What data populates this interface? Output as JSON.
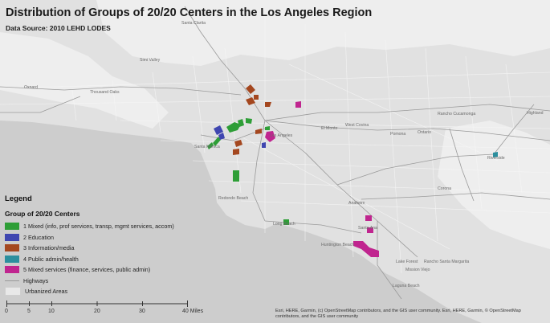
{
  "title": "Distribution of Groups of 20/20 Centers in the Los Angeles Region",
  "data_source": "Data Source: 2010 LEHD LODES",
  "legend": {
    "title": "Legend",
    "subtitle": "Group of 20/20 Centers",
    "items": [
      {
        "label": "1 Mixed (info, prof services, transp, mgmt services, accom)",
        "color": "#2e9e37"
      },
      {
        "label": "2 Education",
        "color": "#3f46b0"
      },
      {
        "label": "3 Information/media",
        "color": "#a4471f"
      },
      {
        "label": "4 Public admin/health",
        "color": "#2c8f9e"
      },
      {
        "label": "5 Mixed services (finance, services, public admin)",
        "color": "#c0258f"
      }
    ],
    "highways_label": "Highways",
    "urbanized_label": "Urbanized Areas"
  },
  "scale": {
    "labels": [
      "0",
      "5",
      "10",
      "20",
      "30",
      "40 Miles"
    ]
  },
  "attribution": "Esri, HERE, Garmin, (c) OpenStreetMap contributors, and the GIS user community. Esri, HERE, Garmin, © OpenStreetMap contributors, and the GIS user community",
  "places": [
    "Santa Clarita",
    "Simi Valley",
    "Oxnard",
    "Thousand Oaks",
    "Highland",
    "Rancho Cucamonga",
    "West Covina",
    "El Monte",
    "Pomona",
    "Ontario",
    "Riverside",
    "Corona",
    "Santa Monica",
    "Los Angeles",
    "Anaheim",
    "Redondo Beach",
    "Long Beach",
    "Santa Ana",
    "Huntington Beach",
    "Lake Forest",
    "Rancho Santa Margarita",
    "Mission Viejo",
    "Laguna Beach"
  ]
}
